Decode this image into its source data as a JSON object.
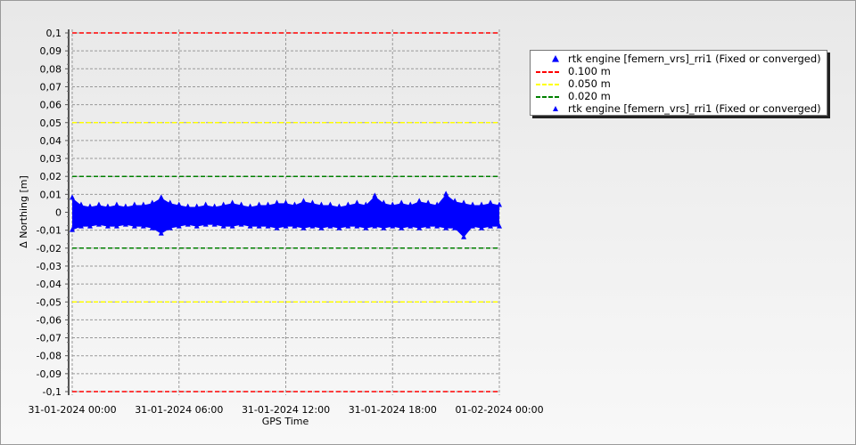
{
  "chart_data": {
    "type": "scatter",
    "xlabel": "GPS Time",
    "ylabel": "Δ Northing [m]",
    "xlim_hours": [
      0,
      24
    ],
    "ylim": [
      -0.1,
      0.1
    ],
    "grid": true,
    "legend_position": "right",
    "x_tick_labels": [
      "31-01-2024 00:00",
      "31-01-2024 06:00",
      "31-01-2024 12:00",
      "31-01-2024 18:00",
      "01-02-2024 00:00"
    ],
    "x_tick_hours": [
      0,
      6,
      12,
      18,
      24
    ],
    "y_ticks": [
      0.1,
      0.09,
      0.08,
      0.07,
      0.06,
      0.05,
      0.04,
      0.03,
      0.02,
      0.01,
      0,
      -0.01,
      -0.02,
      -0.03,
      -0.04,
      -0.05,
      -0.06,
      -0.07,
      -0.08,
      -0.09,
      -0.1
    ],
    "y_tick_labels": [
      "0,1",
      "0,09",
      "0,08",
      "0,07",
      "0,06",
      "0,05",
      "0,04",
      "0,03",
      "0,02",
      "0,01",
      "0",
      "-0,01",
      "-0,02",
      "-0,03",
      "-0,04",
      "-0,05",
      "-0,06",
      "-0,07",
      "-0,08",
      "-0,09",
      "-0,1"
    ],
    "thresholds": [
      {
        "name": "0.100 m",
        "value": 0.1,
        "color": "#ff0000"
      },
      {
        "name": "0.050 m",
        "value": 0.05,
        "color": "#ffff00"
      },
      {
        "name": "0.020 m",
        "value": 0.02,
        "color": "#008000"
      }
    ],
    "series": [
      {
        "name": "rtk engine [femern_vrs]_rri1 (Fixed or converged)",
        "color": "#0000ff",
        "marker": "triangle",
        "x_step_hours": 0.5,
        "upper": [
          0.008,
          0.004,
          0.003,
          0.004,
          0.003,
          0.004,
          0.003,
          0.004,
          0.004,
          0.005,
          0.008,
          0.005,
          0.004,
          0.003,
          0.003,
          0.004,
          0.003,
          0.004,
          0.005,
          0.004,
          0.003,
          0.004,
          0.004,
          0.005,
          0.005,
          0.004,
          0.006,
          0.005,
          0.004,
          0.004,
          0.003,
          0.004,
          0.005,
          0.004,
          0.009,
          0.005,
          0.004,
          0.005,
          0.004,
          0.006,
          0.005,
          0.004,
          0.01,
          0.006,
          0.005,
          0.004,
          0.004,
          0.005,
          0.004
        ],
        "lower": [
          -0.01,
          -0.008,
          -0.008,
          -0.007,
          -0.008,
          -0.008,
          -0.007,
          -0.008,
          -0.008,
          -0.009,
          -0.012,
          -0.009,
          -0.008,
          -0.007,
          -0.008,
          -0.007,
          -0.007,
          -0.008,
          -0.008,
          -0.007,
          -0.008,
          -0.008,
          -0.008,
          -0.009,
          -0.008,
          -0.008,
          -0.009,
          -0.008,
          -0.009,
          -0.008,
          -0.009,
          -0.008,
          -0.008,
          -0.009,
          -0.008,
          -0.009,
          -0.008,
          -0.009,
          -0.008,
          -0.009,
          -0.008,
          -0.008,
          -0.009,
          -0.009,
          -0.014,
          -0.008,
          -0.009,
          -0.008,
          -0.008
        ]
      }
    ]
  },
  "legend": {
    "items": [
      {
        "label": "rtk engine [femern_vrs]_rri1 (Fixed or converged)",
        "symbol": "triangle",
        "color": "#0000ff"
      },
      {
        "label": "0.100 m",
        "symbol": "dash",
        "color": "#ff0000"
      },
      {
        "label": "0.050 m",
        "symbol": "dash",
        "color": "#ffff00"
      },
      {
        "label": "0.020 m",
        "symbol": "dash",
        "color": "#008000"
      },
      {
        "label": "rtk engine [femern_vrs]_rri1 (Fixed or converged)",
        "symbol": "small-triangle",
        "color": "#0000ff"
      }
    ]
  }
}
